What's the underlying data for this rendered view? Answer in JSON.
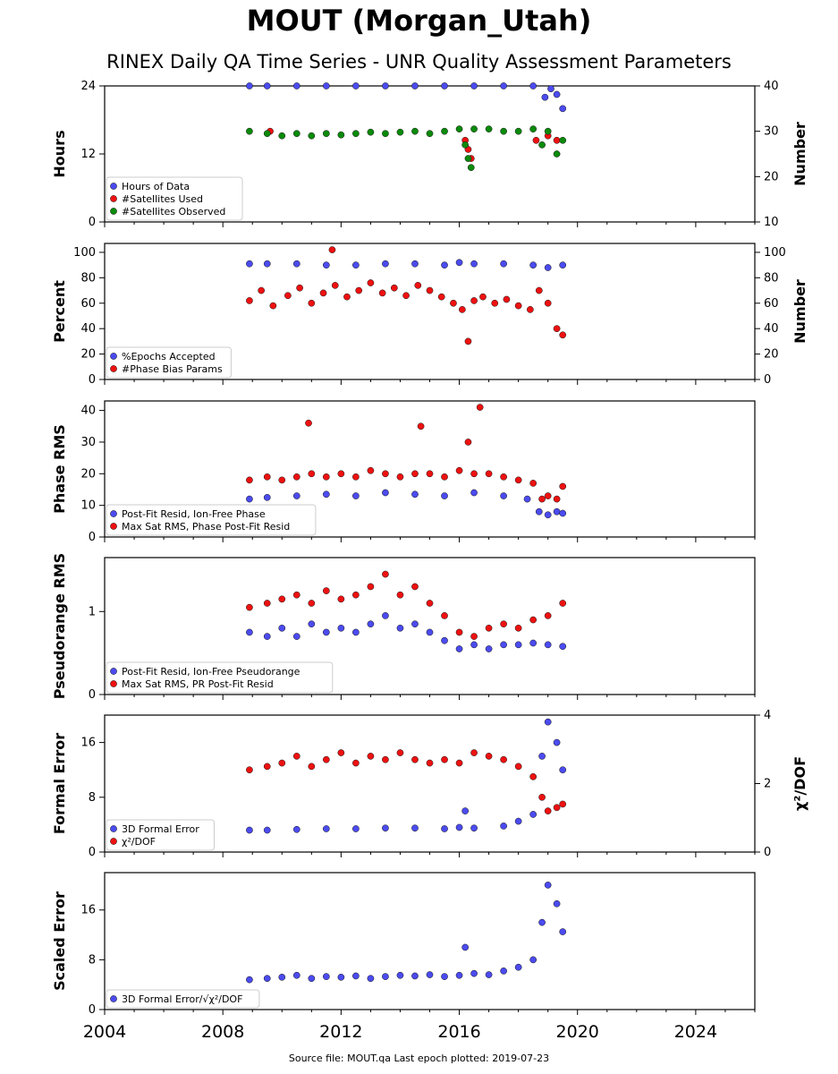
{
  "title": "MOUT (Morgan_Utah)",
  "subtitle": "RINEX Daily QA Time Series - UNR Quality Assessment Parameters",
  "footer": "Source file: MOUT.qa Last epoch plotted: 2019-07-23",
  "colors": {
    "blue": "#4b4bf0",
    "red": "#ee1111",
    "green": "#0b8a0b"
  },
  "chart_data": {
    "type": "scatter",
    "x_axis": {
      "xlim": [
        2004,
        2026
      ],
      "ticks": [
        2004,
        2008,
        2012,
        2016,
        2020,
        2024
      ]
    },
    "panels": [
      {
        "ylabel": "Hours",
        "ylabel_right": "Number",
        "ylim": [
          0,
          24
        ],
        "yticks": [
          0,
          12,
          24
        ],
        "ylim_right": [
          10,
          40
        ],
        "yticks_right": [
          10,
          20,
          30,
          40
        ],
        "legend_position": "lower-left",
        "series": [
          {
            "name": "Hours of Data",
            "color": "blue",
            "axis": "left",
            "x": [
              2008.9,
              2009.5,
              2010.5,
              2011.5,
              2012.5,
              2013.5,
              2014.5,
              2015.5,
              2016.5,
              2017.5,
              2018.5,
              2018.9,
              2019.1,
              2019.3,
              2019.5
            ],
            "y": [
              24.0,
              24.0,
              24.0,
              24.0,
              24.0,
              24.0,
              24.0,
              24.0,
              24.0,
              24.0,
              24.0,
              22.0,
              23.5,
              22.5,
              20.0
            ]
          },
          {
            "name": "#Satellites Used",
            "color": "red",
            "axis": "right",
            "x": [
              2009.6,
              2016.2,
              2016.3,
              2016.4,
              2018.6,
              2019.0,
              2019.3
            ],
            "y": [
              30.0,
              28.0,
              26.0,
              24.0,
              28.0,
              29.0,
              28.0
            ]
          },
          {
            "name": "#Satellites Observed",
            "color": "green",
            "axis": "right",
            "x": [
              2008.9,
              2009.5,
              2010.0,
              2010.5,
              2011.0,
              2011.5,
              2012.0,
              2012.5,
              2013.0,
              2013.5,
              2014.0,
              2014.5,
              2015.0,
              2015.5,
              2016.0,
              2016.2,
              2016.3,
              2016.4,
              2016.5,
              2017.0,
              2017.5,
              2018.0,
              2018.5,
              2018.8,
              2019.0,
              2019.3,
              2019.5
            ],
            "y": [
              30.0,
              29.5,
              29.0,
              29.5,
              29.0,
              29.5,
              29.2,
              29.5,
              29.8,
              29.5,
              29.8,
              30.0,
              29.5,
              30.0,
              30.5,
              27.0,
              24.0,
              22.0,
              30.5,
              30.5,
              30.0,
              30.0,
              30.5,
              27.0,
              30.0,
              25.0,
              28.0
            ]
          }
        ]
      },
      {
        "ylabel": "Percent",
        "ylabel_right": "Number",
        "ylim": [
          0,
          107
        ],
        "yticks": [
          0,
          20,
          40,
          60,
          80,
          100
        ],
        "ylim_right": [
          0,
          107
        ],
        "yticks_right": [
          0,
          20,
          40,
          60,
          80,
          100
        ],
        "legend_position": "lower-left",
        "series": [
          {
            "name": "%Epochs Accepted",
            "color": "blue",
            "axis": "left",
            "x": [
              2008.9,
              2009.5,
              2010.5,
              2011.5,
              2012.5,
              2013.5,
              2014.5,
              2015.5,
              2016.0,
              2016.5,
              2017.5,
              2018.5,
              2019.0,
              2019.5
            ],
            "y": [
              91,
              91,
              91,
              90,
              90,
              91,
              91,
              90,
              92,
              91,
              91,
              90,
              88,
              90
            ]
          },
          {
            "name": "#Phase Bias Params",
            "color": "red",
            "axis": "right",
            "x": [
              2008.9,
              2009.3,
              2009.7,
              2010.2,
              2010.6,
              2011.0,
              2011.4,
              2011.8,
              2012.2,
              2012.6,
              2013.0,
              2013.4,
              2013.8,
              2014.2,
              2014.6,
              2015.0,
              2015.4,
              2015.8,
              2016.1,
              2016.3,
              2016.5,
              2016.8,
              2017.2,
              2017.6,
              2018.0,
              2018.4,
              2018.7,
              2019.0,
              2019.3,
              2019.5,
              2011.7
            ],
            "y": [
              62,
              70,
              58,
              66,
              72,
              60,
              68,
              74,
              65,
              70,
              76,
              68,
              72,
              66,
              74,
              70,
              65,
              60,
              55,
              30,
              62,
              65,
              60,
              63,
              58,
              55,
              70,
              60,
              40,
              35,
              102
            ]
          }
        ]
      },
      {
        "ylabel": "Phase RMS",
        "ylim": [
          0,
          43
        ],
        "yticks": [
          0,
          10,
          20,
          30,
          40
        ],
        "legend_position": "lower-left",
        "series": [
          {
            "name": "Post-Fit Resid, Ion-Free Phase",
            "color": "blue",
            "axis": "left",
            "x": [
              2008.9,
              2009.5,
              2010.5,
              2011.5,
              2012.5,
              2013.5,
              2014.5,
              2015.5,
              2016.5,
              2017.5,
              2018.3,
              2018.7,
              2019.0,
              2019.3,
              2019.5
            ],
            "y": [
              12,
              12.5,
              13,
              13.5,
              13,
              14,
              13.5,
              13,
              14,
              13,
              12,
              8,
              7,
              8,
              7.5
            ]
          },
          {
            "name": "Max Sat RMS, Phase Post-Fit Resid",
            "color": "red",
            "axis": "left",
            "x": [
              2008.9,
              2009.5,
              2010.0,
              2010.5,
              2011.0,
              2011.5,
              2012.0,
              2012.5,
              2013.0,
              2013.5,
              2014.0,
              2014.5,
              2015.0,
              2015.5,
              2016.0,
              2016.3,
              2016.5,
              2017.0,
              2017.5,
              2018.0,
              2018.5,
              2018.8,
              2019.0,
              2019.3,
              2019.5,
              2010.9,
              2014.7,
              2016.7
            ],
            "y": [
              18,
              19,
              18,
              19,
              20,
              19,
              20,
              19,
              21,
              20,
              19,
              20,
              20,
              19,
              21,
              30,
              20,
              20,
              19,
              18,
              17,
              12,
              13,
              12,
              16,
              36,
              35,
              41
            ]
          }
        ]
      },
      {
        "ylabel": "Pseudorange RMS",
        "ylim": [
          0,
          1.65
        ],
        "yticks": [
          0,
          1
        ],
        "legend_position": "lower-left",
        "series": [
          {
            "name": "Post-Fit Resid, Ion-Free Pseudorange",
            "color": "blue",
            "axis": "left",
            "x": [
              2008.9,
              2009.5,
              2010.0,
              2010.5,
              2011.0,
              2011.5,
              2012.0,
              2012.5,
              2013.0,
              2013.5,
              2014.0,
              2014.5,
              2015.0,
              2015.5,
              2016.0,
              2016.5,
              2017.0,
              2017.5,
              2018.0,
              2018.5,
              2019.0,
              2019.5
            ],
            "y": [
              0.75,
              0.7,
              0.8,
              0.7,
              0.85,
              0.75,
              0.8,
              0.75,
              0.85,
              0.95,
              0.8,
              0.85,
              0.75,
              0.65,
              0.55,
              0.6,
              0.55,
              0.6,
              0.6,
              0.62,
              0.6,
              0.58
            ]
          },
          {
            "name": "Max Sat RMS, PR Post-Fit Resid",
            "color": "red",
            "axis": "left",
            "x": [
              2008.9,
              2009.5,
              2010.0,
              2010.5,
              2011.0,
              2011.5,
              2012.0,
              2012.5,
              2013.0,
              2013.5,
              2014.0,
              2014.5,
              2015.0,
              2015.5,
              2016.0,
              2016.5,
              2017.0,
              2017.5,
              2018.0,
              2018.5,
              2019.0,
              2019.5
            ],
            "y": [
              1.05,
              1.1,
              1.15,
              1.2,
              1.1,
              1.25,
              1.15,
              1.2,
              1.3,
              1.45,
              1.2,
              1.3,
              1.1,
              0.95,
              0.75,
              0.7,
              0.8,
              0.85,
              0.8,
              0.9,
              0.95,
              1.1
            ]
          }
        ]
      },
      {
        "ylabel": "Formal Error",
        "ylabel_right": "χ²/DOF",
        "ylim": [
          0,
          20
        ],
        "yticks": [
          0,
          8,
          16
        ],
        "ylim_right": [
          0,
          4
        ],
        "yticks_right": [
          0,
          2,
          4
        ],
        "legend_position": "lower-left",
        "series": [
          {
            "name": "3D Formal Error",
            "color": "blue",
            "axis": "left",
            "x": [
              2008.9,
              2009.5,
              2010.5,
              2011.5,
              2012.5,
              2013.5,
              2014.5,
              2015.5,
              2016.0,
              2016.2,
              2016.5,
              2017.5,
              2018.0,
              2018.5,
              2018.8,
              2019.0,
              2019.3,
              2019.5
            ],
            "y": [
              3.2,
              3.2,
              3.3,
              3.4,
              3.4,
              3.5,
              3.5,
              3.4,
              3.6,
              6,
              3.5,
              3.8,
              4.5,
              5.5,
              14,
              19,
              16,
              12
            ]
          },
          {
            "name": "χ²/DOF",
            "color": "red",
            "axis": "right",
            "x": [
              2008.9,
              2009.5,
              2010.0,
              2010.5,
              2011.0,
              2011.5,
              2012.0,
              2012.5,
              2013.0,
              2013.5,
              2014.0,
              2014.5,
              2015.0,
              2015.5,
              2016.0,
              2016.5,
              2017.0,
              2017.5,
              2018.0,
              2018.5,
              2018.8,
              2019.0,
              2019.3,
              2019.5
            ],
            "y": [
              2.4,
              2.5,
              2.6,
              2.8,
              2.5,
              2.7,
              2.9,
              2.6,
              2.8,
              2.7,
              2.9,
              2.7,
              2.6,
              2.7,
              2.6,
              2.9,
              2.8,
              2.7,
              2.5,
              2.2,
              1.6,
              1.2,
              1.3,
              1.4
            ]
          }
        ]
      },
      {
        "ylabel": "Scaled Error",
        "ylim": [
          0,
          22
        ],
        "yticks": [
          0,
          8,
          16
        ],
        "legend_position": "lower-left",
        "series": [
          {
            "name": "3D Formal Error/√χ²/DOF",
            "color": "blue",
            "axis": "left",
            "x": [
              2008.9,
              2009.5,
              2010.0,
              2010.5,
              2011.0,
              2011.5,
              2012.0,
              2012.5,
              2013.0,
              2013.5,
              2014.0,
              2014.5,
              2015.0,
              2015.5,
              2016.0,
              2016.2,
              2016.5,
              2017.0,
              2017.5,
              2018.0,
              2018.5,
              2018.8,
              2019.0,
              2019.3,
              2019.5
            ],
            "y": [
              4.8,
              5.0,
              5.2,
              5.5,
              5.0,
              5.3,
              5.2,
              5.4,
              5.0,
              5.3,
              5.5,
              5.4,
              5.6,
              5.3,
              5.5,
              10,
              5.8,
              5.6,
              6.2,
              6.8,
              8,
              14,
              20,
              17,
              12.5
            ]
          }
        ]
      }
    ]
  }
}
